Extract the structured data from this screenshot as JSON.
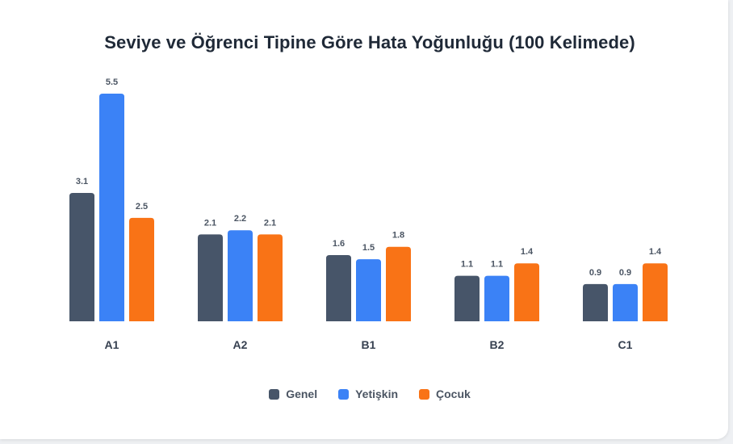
{
  "chart_data": {
    "type": "bar",
    "title": "Seviye ve Öğrenci Tipine Göre Hata Yoğunluğu (100 Kelimede)",
    "categories": [
      "A1",
      "A2",
      "B1",
      "B2",
      "C1"
    ],
    "series": [
      {
        "name": "Genel",
        "values": [
          3.1,
          2.1,
          1.6,
          1.1,
          0.9
        ],
        "color": "#475569"
      },
      {
        "name": "Yetişkin",
        "values": [
          5.5,
          2.2,
          1.5,
          1.1,
          0.9
        ],
        "color": "#3b82f6"
      },
      {
        "name": "Çocuk",
        "values": [
          2.5,
          2.1,
          1.8,
          1.4,
          1.4
        ],
        "color": "#f97316"
      }
    ],
    "xlabel": "",
    "ylabel": "",
    "ylim": [
      0,
      5.5
    ],
    "grid": false,
    "legend_position": "bottom-center",
    "data_labels": true
  }
}
